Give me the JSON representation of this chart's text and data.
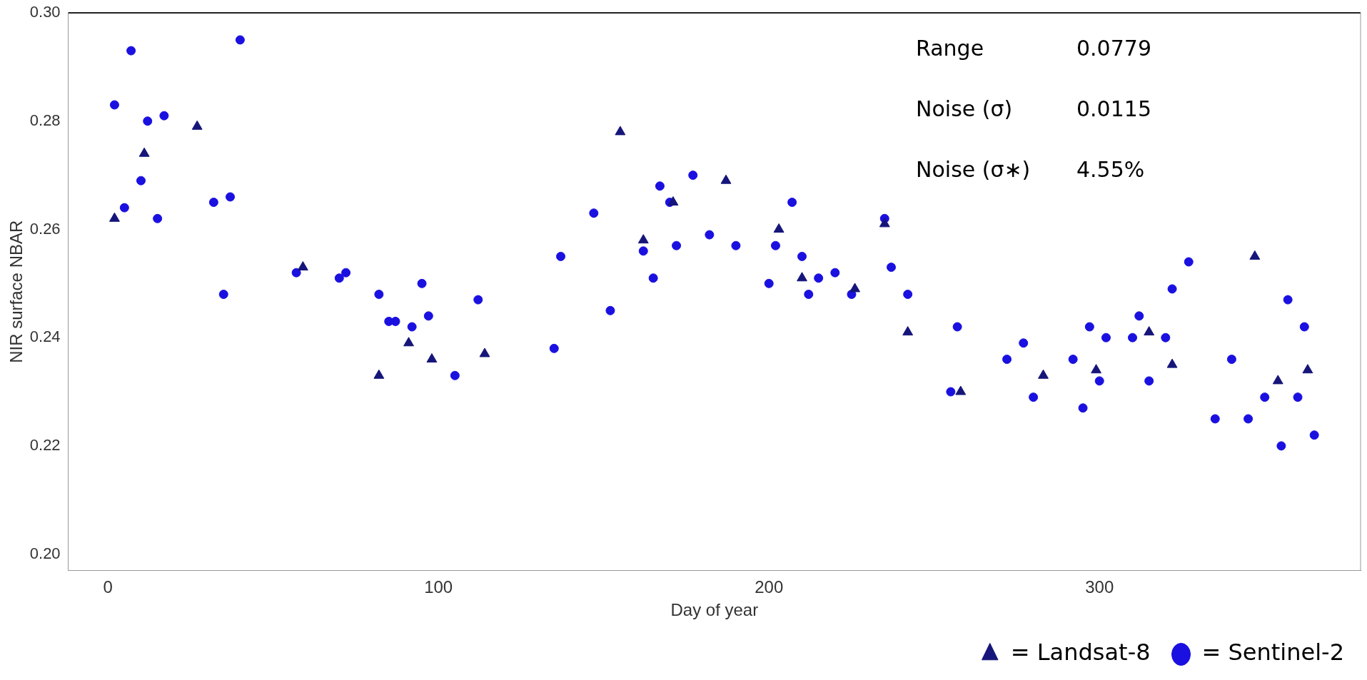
{
  "chart_data": {
    "type": "scatter",
    "xlabel": "Day of year",
    "ylabel": "NIR surface NBAR",
    "xlim": [
      -12,
      379
    ],
    "xticks": [
      0,
      100,
      200,
      300
    ],
    "ylim": [
      0.197,
      0.3
    ],
    "yticks": [
      {
        "value": 0.2,
        "label": "0.20"
      },
      {
        "value": 0.22,
        "label": "0.22"
      },
      {
        "value": 0.24,
        "label": "0.24"
      },
      {
        "value": 0.26,
        "label": "0.26"
      },
      {
        "value": 0.28,
        "label": "0.28"
      },
      {
        "value": 0.3,
        "label": "0.30"
      }
    ],
    "grid": false,
    "legend": "bottom right",
    "annotations": [
      "Range",
      "0.0779",
      "Noise (σ)",
      "0.0115",
      "Noise (σ∗)",
      "4.55%"
    ],
    "series": [
      {
        "name": "= Sentinel-2",
        "color": "#1a10e0",
        "marker": "circle",
        "x": [
          7,
          40,
          2,
          12,
          17,
          10,
          5,
          15,
          32,
          37,
          35,
          57,
          70,
          72,
          82,
          85,
          87,
          92,
          95,
          97,
          105,
          112,
          135,
          137,
          147,
          152,
          162,
          165,
          167,
          170,
          172,
          177,
          182,
          190,
          202,
          207,
          210,
          200,
          215,
          212,
          220,
          225,
          235,
          237,
          242,
          257,
          255,
          272,
          277,
          280,
          292,
          295,
          297,
          300,
          302,
          310,
          312,
          315,
          320,
          322,
          327,
          335,
          340,
          345,
          350,
          355,
          357,
          360,
          362,
          365
        ],
        "values": [
          0.293,
          0.295,
          0.283,
          0.28,
          0.281,
          0.269,
          0.264,
          0.262,
          0.265,
          0.266,
          0.248,
          0.252,
          0.251,
          0.252,
          0.248,
          0.243,
          0.243,
          0.242,
          0.25,
          0.244,
          0.233,
          0.247,
          0.238,
          0.255,
          0.263,
          0.245,
          0.256,
          0.251,
          0.268,
          0.265,
          0.257,
          0.27,
          0.259,
          0.257,
          0.257,
          0.265,
          0.255,
          0.25,
          0.251,
          0.248,
          0.252,
          0.248,
          0.262,
          0.253,
          0.248,
          0.242,
          0.23,
          0.236,
          0.239,
          0.229,
          0.236,
          0.227,
          0.242,
          0.232,
          0.24,
          0.24,
          0.244,
          0.232,
          0.24,
          0.249,
          0.254,
          0.225,
          0.236,
          0.225,
          0.229,
          0.22,
          0.247,
          0.229,
          0.242,
          0.222
        ]
      },
      {
        "name": "= Landsat-8",
        "color": "#15157a",
        "marker": "triangle",
        "x": [
          2,
          11,
          27,
          59,
          82,
          155,
          162,
          171,
          187,
          91,
          98,
          114,
          203,
          210,
          226,
          235,
          242,
          258,
          283,
          299,
          315,
          322,
          347,
          354,
          363
        ],
        "values": [
          0.262,
          0.274,
          0.279,
          0.253,
          0.233,
          0.278,
          0.258,
          0.265,
          0.269,
          0.239,
          0.236,
          0.237,
          0.26,
          0.251,
          0.249,
          0.261,
          0.241,
          0.23,
          0.233,
          0.234,
          0.241,
          0.235,
          0.255,
          0.232,
          0.234
        ]
      }
    ]
  }
}
